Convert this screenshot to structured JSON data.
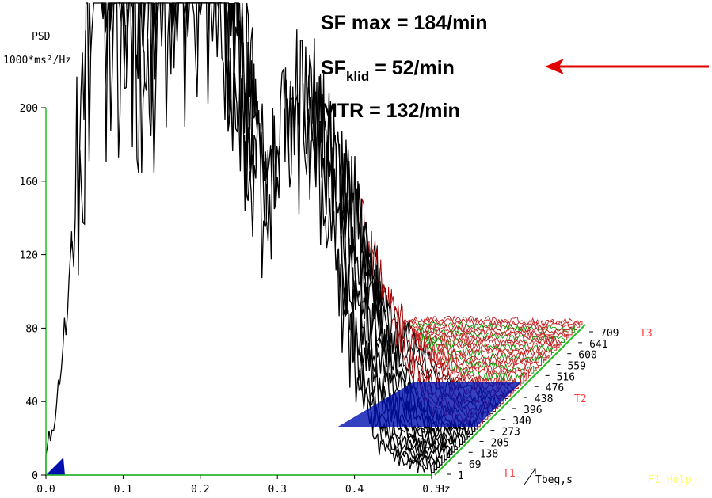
{
  "chart_data": {
    "type": "waterfall",
    "ylabel": "PSD",
    "yunit": "1000*ms²/Hz",
    "ylim": [
      0,
      200
    ],
    "yticks": [
      0,
      40,
      80,
      120,
      160,
      200
    ],
    "xlim": [
      0,
      0.5
    ],
    "xticks": [
      {
        "value": 0,
        "label": "0.0"
      },
      {
        "value": 0.1,
        "label": "0.1"
      },
      {
        "value": 0.2,
        "label": "0.2"
      },
      {
        "value": 0.3,
        "label": "0.3"
      },
      {
        "value": 0.4,
        "label": "0.4"
      },
      {
        "value": 0.5,
        "label": "0.5"
      }
    ],
    "xunit": "Hz",
    "depth_label": "Tbeg,s",
    "depth_ticks": [
      1,
      69,
      138,
      205,
      273,
      340,
      396,
      438,
      476,
      516,
      559,
      600,
      641,
      709
    ],
    "markers": [
      {
        "label": "T1",
        "at": 1
      },
      {
        "label": "T2",
        "at": 438
      },
      {
        "label": "T3",
        "at": 709
      }
    ],
    "help": "F1 Help",
    "annotations": [
      {
        "text": "SF max = 184/min"
      },
      {
        "text": "SF",
        "sub": "klid",
        "rest": " = 52/min"
      },
      {
        "text": "MTR = 132/min"
      }
    ]
  }
}
